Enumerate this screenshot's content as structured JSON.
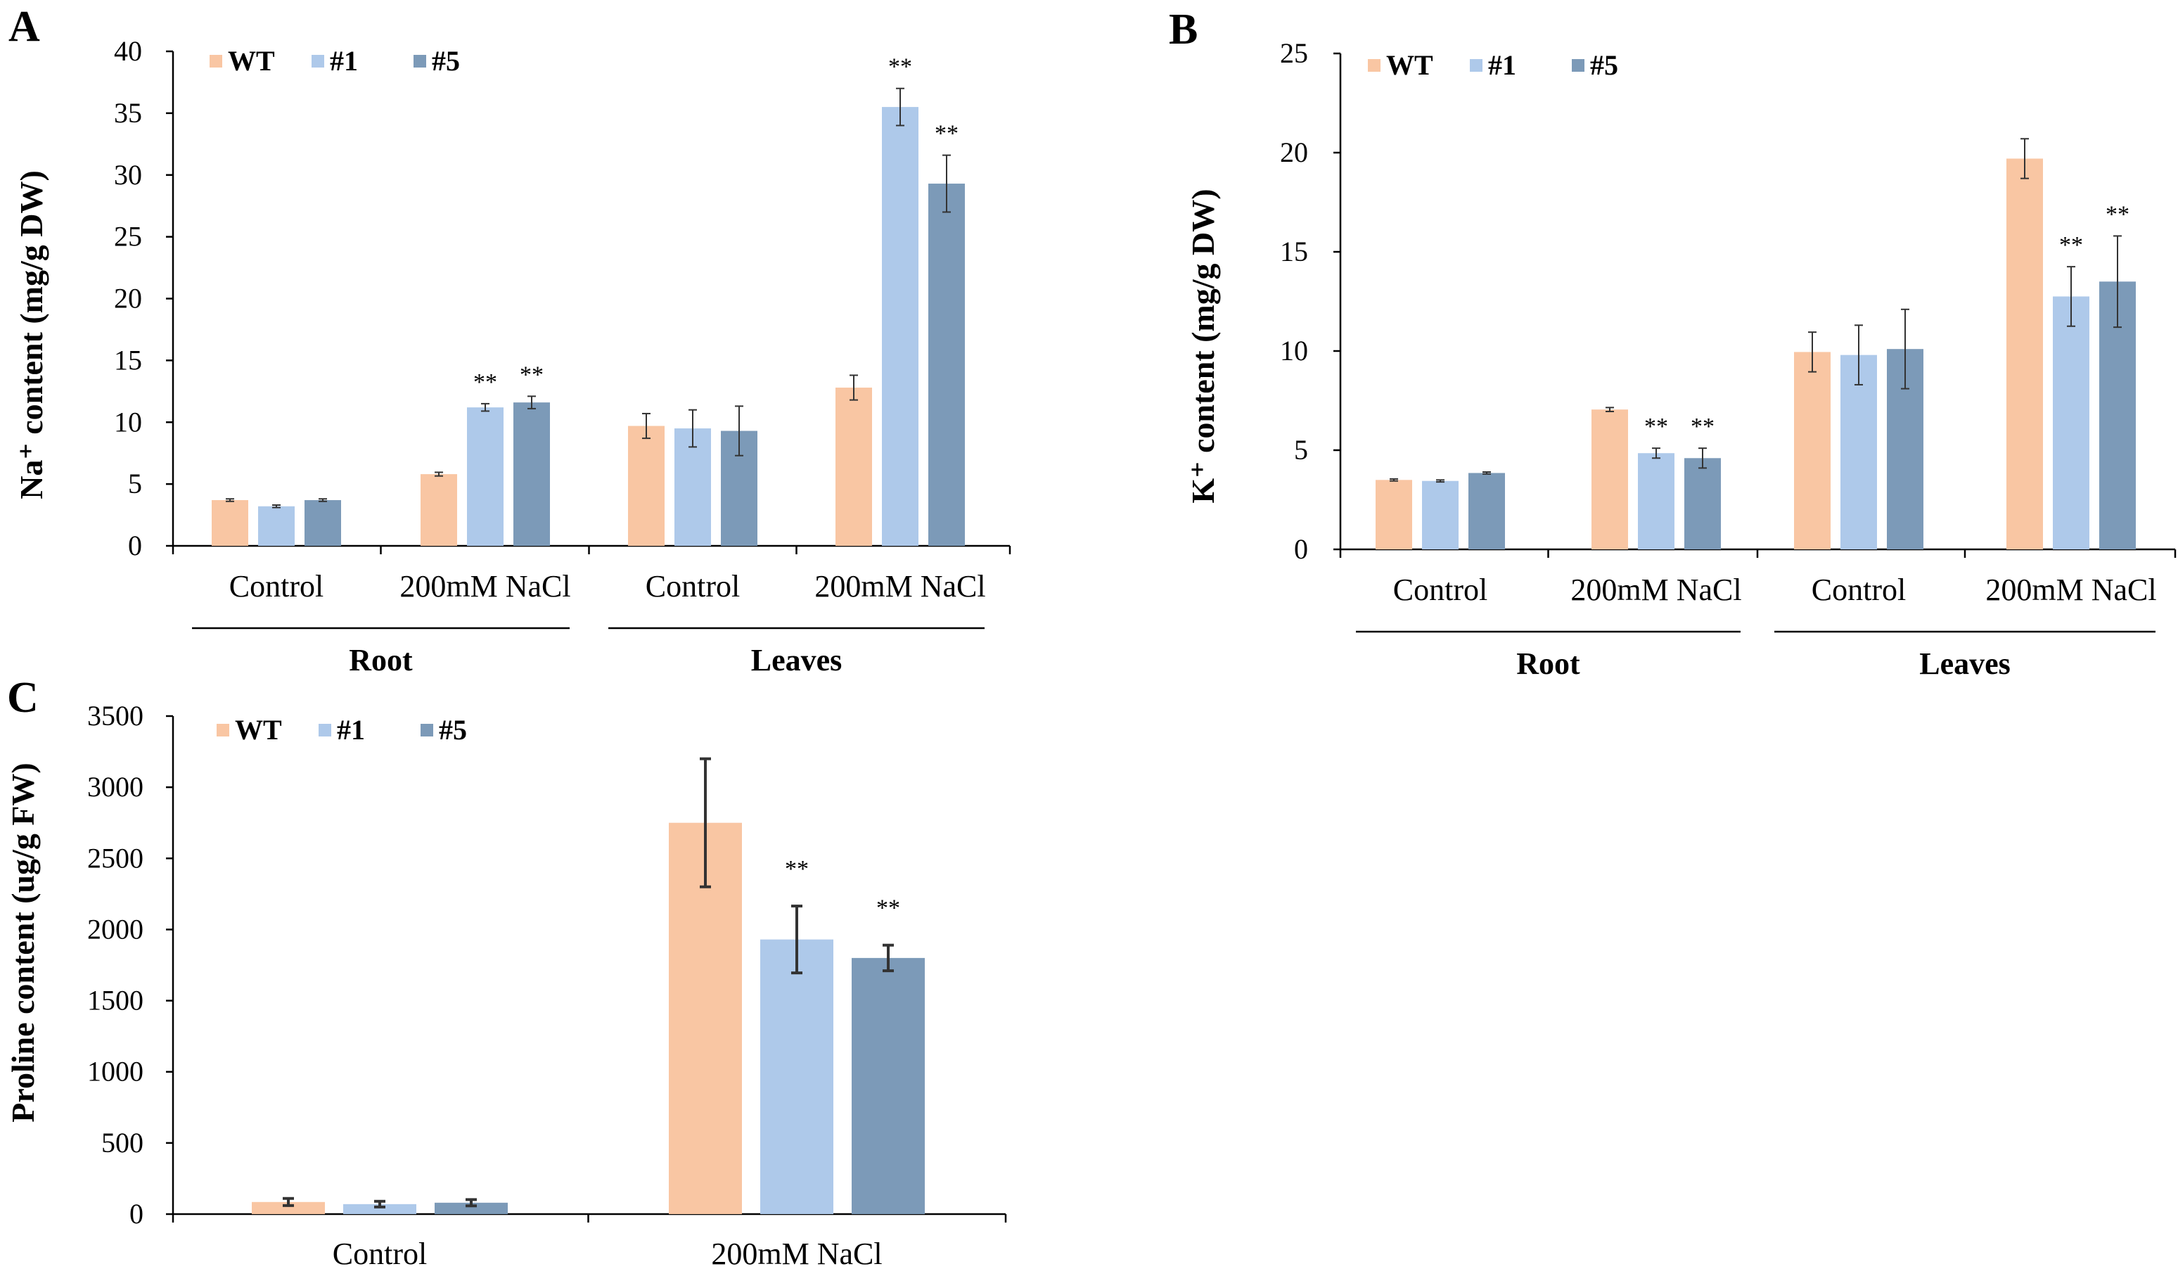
{
  "colors": {
    "WT": "#F9C6A3",
    "#1": "#AEC9EA",
    "#5": "#7C9AB8"
  },
  "chart_data": [
    {
      "panel": "A",
      "type": "bar",
      "ylabel": "Na⁺ content (mg/g DW)",
      "ylim": [
        0,
        40
      ],
      "yticks": [
        0,
        5,
        10,
        15,
        20,
        25,
        30,
        35,
        40
      ],
      "legend": [
        "WT",
        "#1",
        "#5"
      ],
      "legend_position": "top-left",
      "groups": [
        {
          "label": "Control",
          "tissue": "Root",
          "values": [
            3.7,
            3.2,
            3.7
          ],
          "errors": [
            0.1,
            0.1,
            0.1
          ],
          "sig": [
            "",
            "",
            ""
          ]
        },
        {
          "label": "200mM NaCl",
          "tissue": "Root",
          "values": [
            5.8,
            11.2,
            11.6
          ],
          "errors": [
            0.15,
            0.3,
            0.5
          ],
          "sig": [
            "",
            "**",
            "**"
          ]
        },
        {
          "label": "Control",
          "tissue": "Leaves",
          "values": [
            9.7,
            9.5,
            9.3
          ],
          "errors": [
            1.0,
            1.5,
            2.0
          ],
          "sig": [
            "",
            "",
            ""
          ]
        },
        {
          "label": "200mM NaCl",
          "tissue": "Leaves",
          "values": [
            12.8,
            35.5,
            29.3
          ],
          "errors": [
            1.0,
            1.5,
            2.3
          ],
          "sig": [
            "",
            "**",
            "**"
          ]
        }
      ],
      "tissues": [
        "Root",
        "Leaves"
      ]
    },
    {
      "panel": "B",
      "type": "bar",
      "ylabel": "K⁺ content (mg/g DW)",
      "ylim": [
        0,
        25
      ],
      "yticks": [
        0,
        5,
        10,
        15,
        20,
        25
      ],
      "legend": [
        "WT",
        "#1",
        "#5"
      ],
      "legend_position": "top-left",
      "groups": [
        {
          "label": "Control",
          "tissue": "Root",
          "values": [
            3.5,
            3.45,
            3.85
          ],
          "errors": [
            0.05,
            0.05,
            0.05
          ],
          "sig": [
            "",
            "",
            ""
          ]
        },
        {
          "label": "200mM NaCl",
          "tissue": "Root",
          "values": [
            7.05,
            4.85,
            4.6
          ],
          "errors": [
            0.1,
            0.25,
            0.5
          ],
          "sig": [
            "",
            "**",
            "**"
          ]
        },
        {
          "label": "Control",
          "tissue": "Leaves",
          "values": [
            9.95,
            9.8,
            10.1
          ],
          "errors": [
            1.0,
            1.5,
            2.0
          ],
          "sig": [
            "",
            "",
            ""
          ]
        },
        {
          "label": "200mM NaCl",
          "tissue": "Leaves",
          "values": [
            19.7,
            12.75,
            13.5
          ],
          "errors": [
            1.0,
            1.5,
            2.3
          ],
          "sig": [
            "",
            "**",
            "**"
          ]
        }
      ],
      "tissues": [
        "Root",
        "Leaves"
      ]
    },
    {
      "panel": "C",
      "type": "bar",
      "ylabel": "Proline content (ug/g FW)",
      "ylim": [
        0,
        3500
      ],
      "yticks": [
        0,
        500,
        1000,
        1500,
        2000,
        2500,
        3000,
        3500
      ],
      "legend": [
        "WT",
        "#1",
        "#5"
      ],
      "legend_position": "top-left",
      "groups": [
        {
          "label": "Control",
          "values": [
            85,
            70,
            80
          ],
          "errors": [
            25,
            20,
            22
          ],
          "sig": [
            "",
            "",
            ""
          ]
        },
        {
          "label": "200mM NaCl",
          "values": [
            2750,
            1930,
            1800
          ],
          "errors": [
            450,
            235,
            90
          ],
          "sig": [
            "",
            "**",
            "**"
          ]
        }
      ],
      "tissues": []
    }
  ]
}
